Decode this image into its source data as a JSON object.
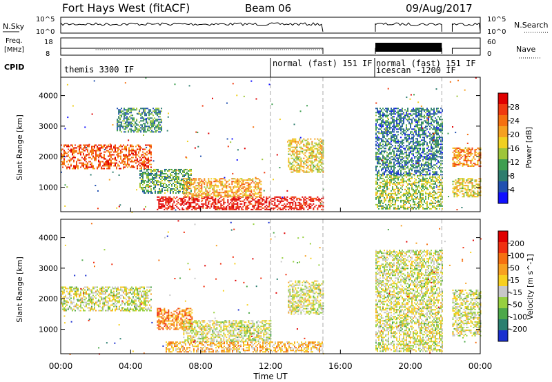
{
  "header": {
    "title": "Fort Hays West (fitACF)",
    "beam": "Beam 06",
    "date": "09/Aug/2017"
  },
  "noise_panel": {
    "left_label": "N.Sky",
    "left_ticks": [
      "10^5",
      "10^0"
    ],
    "right_label": "N.Search",
    "right_ticks": [
      "10^5",
      "10^0"
    ]
  },
  "freq_panel": {
    "left_label_line1": "Freq.",
    "left_label_line2": "[MHz]",
    "left_ticks": [
      "18",
      "8"
    ],
    "right_label": "Nave",
    "right_ticks": [
      "60",
      "0"
    ]
  },
  "cpid": {
    "label": "CPID",
    "segments": [
      {
        "name": "themis 3300 IF",
        "start": 0.0
      },
      {
        "name": "normal (fast) 151 IF",
        "start": 12.0
      },
      {
        "name": "normal (fast) 151 IF",
        "start": 18.0
      },
      {
        "name": "icescan -1200 IF",
        "start": 18.0
      }
    ]
  },
  "chart_data": [
    {
      "type": "heatmap",
      "name": "power",
      "ylabel": "Slant Range [km]",
      "yticks": [
        "1000",
        "2000",
        "3000",
        "4000"
      ],
      "ylim": [
        200,
        4600
      ],
      "xlim": [
        0,
        24
      ],
      "colorbar": {
        "label": "Power [dB]",
        "ticks": [
          "4",
          "8",
          "12",
          "16",
          "20",
          "24",
          "28"
        ],
        "colors": [
          "#1010ff",
          "#2050b0",
          "#2e7d6e",
          "#3e9e50",
          "#9ec53a",
          "#f0d020",
          "#f5a020",
          "#f57010",
          "#f03a10",
          "#e00000"
        ]
      },
      "regions": [
        {
          "x": [
            0.0,
            5.2
          ],
          "y": [
            1600,
            2400
          ],
          "level": 0.8
        },
        {
          "x": [
            3.2,
            5.8
          ],
          "y": [
            2800,
            3600
          ],
          "level": 0.3
        },
        {
          "x": [
            4.5,
            7.5
          ],
          "y": [
            800,
            1600
          ],
          "level": 0.35
        },
        {
          "x": [
            5.5,
            15.0
          ],
          "y": [
            250,
            700
          ],
          "level": 0.95
        },
        {
          "x": [
            7.0,
            11.5
          ],
          "y": [
            700,
            1300
          ],
          "level": 0.65
        },
        {
          "x": [
            13.0,
            15.0
          ],
          "y": [
            1500,
            2600
          ],
          "level": 0.55
        },
        {
          "x": [
            18.0,
            21.8
          ],
          "y": [
            300,
            1400
          ],
          "level": 0.45
        },
        {
          "x": [
            18.0,
            21.8
          ],
          "y": [
            1400,
            3600
          ],
          "level": 0.25
        },
        {
          "x": [
            22.4,
            24.0
          ],
          "y": [
            1700,
            2300
          ],
          "level": 0.7
        },
        {
          "x": [
            22.4,
            24.0
          ],
          "y": [
            700,
            1300
          ],
          "level": 0.55
        }
      ]
    },
    {
      "type": "heatmap",
      "name": "velocity",
      "ylabel": "Slant Range [km]",
      "yticks": [
        "1000",
        "2000",
        "3000",
        "4000"
      ],
      "ylim": [
        200,
        4600
      ],
      "xlim": [
        0,
        24
      ],
      "colorbar": {
        "label": "Velocity [m s^-1]",
        "ticks": [
          "200",
          "100",
          "50",
          "15",
          "-15",
          "-50",
          "-100",
          "-200"
        ],
        "colors": [
          "#1a2fd0",
          "#2a7f70",
          "#4da84a",
          "#96d040",
          "#c8c8c8",
          "#f7d020",
          "#f7a020",
          "#f57010",
          "#f03010",
          "#e00000"
        ]
      },
      "regions": [
        {
          "x": [
            0.0,
            5.2
          ],
          "y": [
            1600,
            2400
          ],
          "level": 0.45
        },
        {
          "x": [
            5.5,
            7.5
          ],
          "y": [
            1000,
            1700
          ],
          "level": 0.7
        },
        {
          "x": [
            6.0,
            15.0
          ],
          "y": [
            250,
            600
          ],
          "level": 0.6
        },
        {
          "x": [
            7.0,
            12.0
          ],
          "y": [
            600,
            1300
          ],
          "level": 0.45
        },
        {
          "x": [
            13.0,
            15.0
          ],
          "y": [
            1500,
            2600
          ],
          "level": 0.45
        },
        {
          "x": [
            18.0,
            21.8
          ],
          "y": [
            300,
            3600
          ],
          "level": 0.45
        },
        {
          "x": [
            22.4,
            24.0
          ],
          "y": [
            800,
            2300
          ],
          "level": 0.45
        }
      ]
    }
  ],
  "xaxis": {
    "label": "Time UT",
    "ticks": [
      "00:00",
      "04:00",
      "08:00",
      "12:00",
      "16:00",
      "20:00",
      "00:00"
    ],
    "tick_hours": [
      0,
      4,
      8,
      12,
      16,
      20,
      24
    ]
  }
}
